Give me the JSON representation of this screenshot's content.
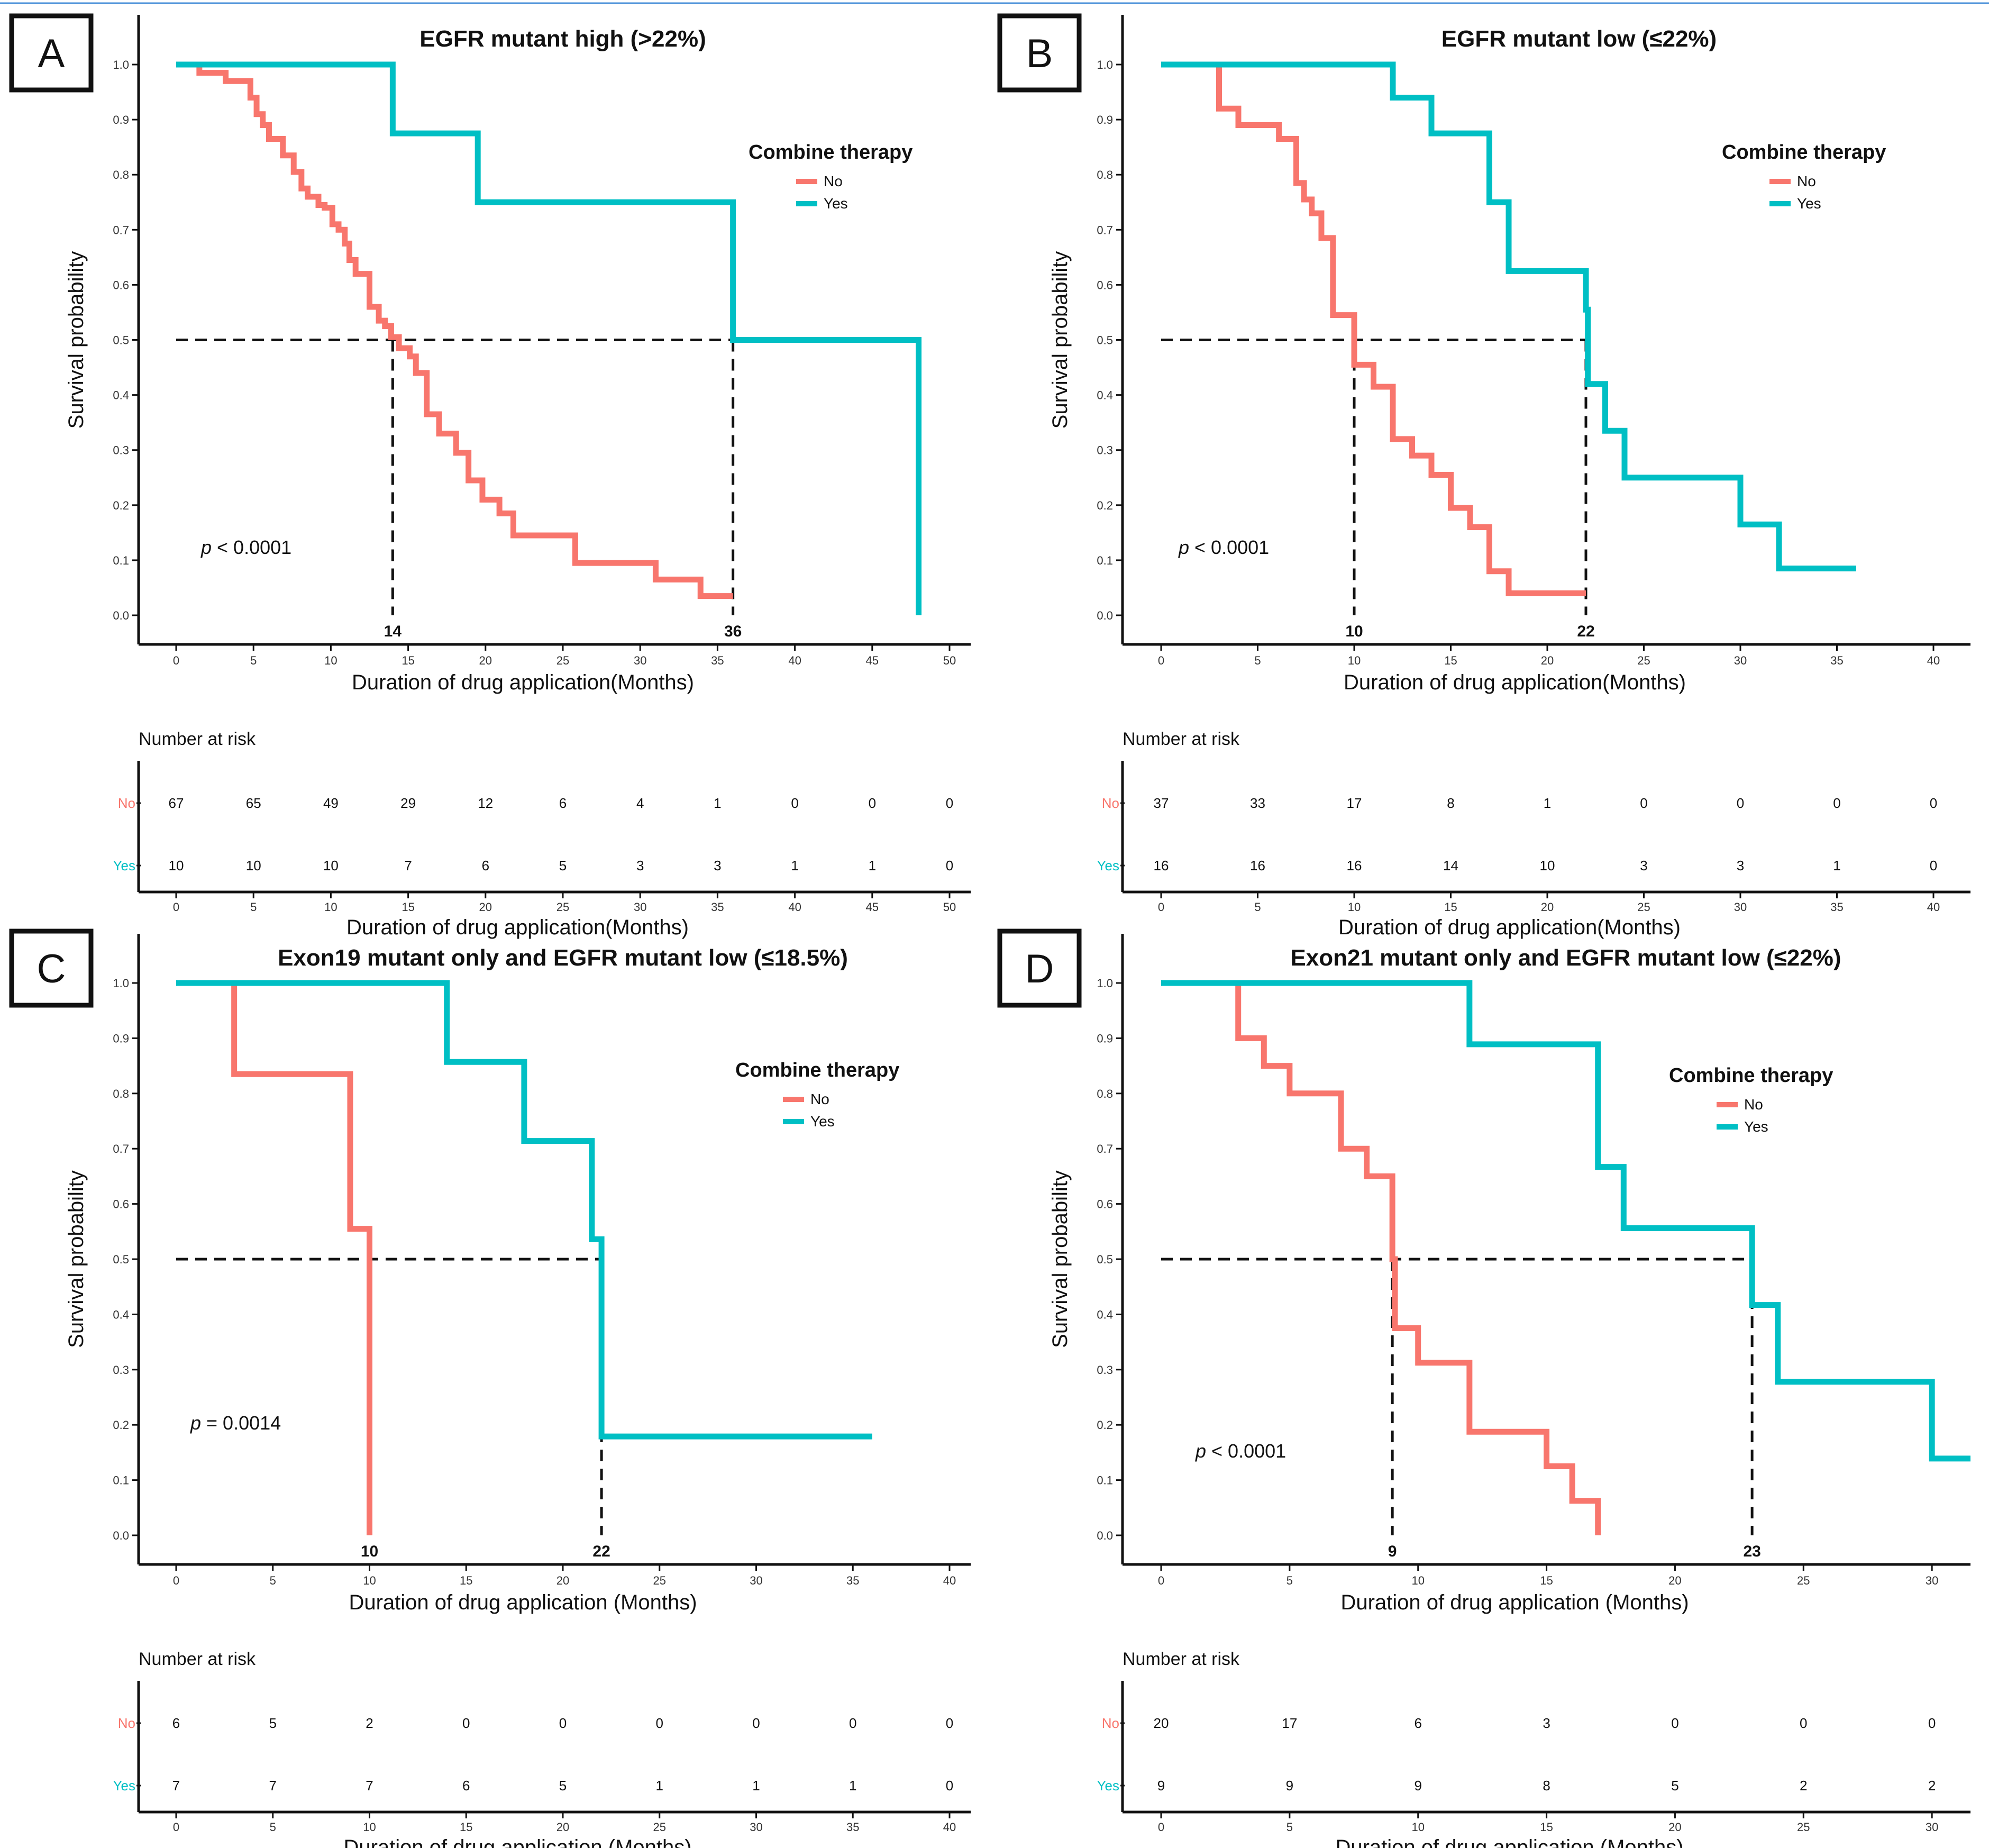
{
  "colors": {
    "no": "#f8766d",
    "yes": "#00bfc4",
    "top_rule": "#4a90d9"
  },
  "chart_data": [
    {
      "panel": "A",
      "type": "line",
      "subtype": "kaplan-meier",
      "title": "EGFR mutant high (>22%)",
      "xlabel": "Duration of drug application(Months)",
      "ylabel": "Survival probability",
      "xlim": [
        0,
        50
      ],
      "ylim": [
        0,
        1
      ],
      "xticks": [
        0,
        5,
        10,
        15,
        20,
        25,
        30,
        35,
        40,
        45,
        50
      ],
      "yticks": [
        0.0,
        0.1,
        0.2,
        0.3,
        0.4,
        0.5,
        0.6,
        0.7,
        0.8,
        0.9,
        1.0
      ],
      "legend_title": "Combine therapy",
      "legend_position": "right",
      "pvalue_label": "< 0.0001",
      "medians": [
        {
          "x": 14,
          "label": "14"
        },
        {
          "x": 36,
          "label": "36"
        }
      ],
      "series": [
        {
          "name": "No",
          "key": "no",
          "x": [
            0,
            1.5,
            3.2,
            4.8,
            5.2,
            5.6,
            6.0,
            6.9,
            7.6,
            8.1,
            8.5,
            9.2,
            9.6,
            10.1,
            10.5,
            10.9,
            11.2,
            11.6,
            12.5,
            13.1,
            13.5,
            13.9,
            14.4,
            15.1,
            15.5,
            16.2,
            17.0,
            18.1,
            18.9,
            19.8,
            20.9,
            21.8,
            25.8,
            31.0,
            33.9,
            36.0
          ],
          "y": [
            1.0,
            0.985,
            0.97,
            0.94,
            0.91,
            0.89,
            0.865,
            0.835,
            0.805,
            0.775,
            0.76,
            0.745,
            0.74,
            0.71,
            0.7,
            0.675,
            0.645,
            0.62,
            0.56,
            0.535,
            0.525,
            0.505,
            0.485,
            0.47,
            0.44,
            0.365,
            0.33,
            0.295,
            0.245,
            0.21,
            0.185,
            0.145,
            0.095,
            0.065,
            0.035,
            0.035
          ]
        },
        {
          "name": "Yes",
          "key": "yes",
          "x": [
            0,
            14,
            19.5,
            36,
            48,
            48
          ],
          "y": [
            1.0,
            0.875,
            0.75,
            0.5,
            0.5,
            0.0
          ]
        }
      ],
      "risk_table": {
        "title": "Number at risk",
        "times": [
          0,
          5,
          10,
          15,
          20,
          25,
          30,
          35,
          40,
          45,
          50
        ],
        "rows": [
          {
            "name": "No",
            "key": "no",
            "values": [
              67,
              65,
              49,
              29,
              12,
              6,
              4,
              1,
              0,
              0,
              0
            ]
          },
          {
            "name": "Yes",
            "key": "yes",
            "values": [
              10,
              10,
              10,
              7,
              6,
              5,
              3,
              3,
              1,
              1,
              0
            ]
          }
        ],
        "xlabel": "Duration of drug application(Months)"
      }
    },
    {
      "panel": "B",
      "type": "line",
      "subtype": "kaplan-meier",
      "title": "EGFR mutant low (≤22%)",
      "xlabel": "Duration of drug application(Months)",
      "ylabel": "Survival probability",
      "xlim": [
        0,
        40
      ],
      "ylim": [
        0,
        1
      ],
      "xticks": [
        0,
        5,
        10,
        15,
        20,
        25,
        30,
        35,
        40
      ],
      "yticks": [
        0.0,
        0.1,
        0.2,
        0.3,
        0.4,
        0.5,
        0.6,
        0.7,
        0.8,
        0.9,
        1.0
      ],
      "legend_title": "Combine therapy",
      "legend_position": "right",
      "pvalue_label": "< 0.0001",
      "medians": [
        {
          "x": 10,
          "label": "10"
        },
        {
          "x": 22,
          "label": "22"
        }
      ],
      "series": [
        {
          "name": "No",
          "key": "no",
          "x": [
            0,
            3.0,
            4.0,
            6.1,
            7.0,
            7.4,
            7.8,
            8.3,
            8.9,
            10.0,
            11.0,
            12.0,
            13.0,
            14.0,
            15.0,
            16.0,
            17.0,
            18.0,
            22.0
          ],
          "y": [
            1.0,
            0.92,
            0.89,
            0.865,
            0.785,
            0.755,
            0.73,
            0.685,
            0.545,
            0.455,
            0.415,
            0.32,
            0.29,
            0.255,
            0.195,
            0.16,
            0.08,
            0.04,
            0.04
          ]
        },
        {
          "name": "Yes",
          "key": "yes",
          "x": [
            0,
            12,
            14,
            17,
            18,
            22,
            22.1,
            23,
            24,
            30,
            32,
            36
          ],
          "y": [
            1.0,
            0.94,
            0.875,
            0.75,
            0.625,
            0.555,
            0.42,
            0.335,
            0.25,
            0.165,
            0.085,
            0.085
          ]
        }
      ],
      "risk_table": {
        "title": "Number at risk",
        "times": [
          0,
          5,
          10,
          15,
          20,
          25,
          30,
          35,
          40
        ],
        "rows": [
          {
            "name": "No",
            "key": "no",
            "values": [
              37,
              33,
              17,
              8,
              1,
              0,
              0,
              0,
              0
            ]
          },
          {
            "name": "Yes",
            "key": "yes",
            "values": [
              16,
              16,
              16,
              14,
              10,
              3,
              3,
              1,
              0
            ]
          }
        ],
        "xlabel": "Duration of drug application(Months)"
      }
    },
    {
      "panel": "C",
      "type": "line",
      "subtype": "kaplan-meier",
      "title": "Exon19 mutant only and EGFR mutant low (≤18.5%)",
      "xlabel": "Duration of drug application (Months)",
      "ylabel": "Survival probability",
      "xlim": [
        0,
        40
      ],
      "ylim": [
        0,
        1
      ],
      "xticks": [
        0,
        5,
        10,
        15,
        20,
        25,
        30,
        35,
        40
      ],
      "yticks": [
        0.0,
        0.1,
        0.2,
        0.3,
        0.4,
        0.5,
        0.6,
        0.7,
        0.8,
        0.9,
        1.0
      ],
      "legend_title": "Combine therapy",
      "legend_position": "right",
      "pvalue_label": "= 0.0014",
      "medians": [
        {
          "x": 10,
          "label": "10"
        },
        {
          "x": 22,
          "label": "22"
        }
      ],
      "series": [
        {
          "name": "No",
          "key": "no",
          "x": [
            0,
            3,
            9,
            10,
            10
          ],
          "y": [
            1.0,
            0.835,
            0.555,
            0.555,
            0.0
          ]
        },
        {
          "name": "Yes",
          "key": "yes",
          "x": [
            0,
            14,
            18,
            21.5,
            22,
            36
          ],
          "y": [
            1.0,
            0.857,
            0.714,
            0.536,
            0.179,
            0.179
          ]
        }
      ],
      "risk_table": {
        "title": "Number at risk",
        "times": [
          0,
          5,
          10,
          15,
          20,
          25,
          30,
          35,
          40
        ],
        "rows": [
          {
            "name": "No",
            "key": "no",
            "values": [
              6,
              5,
              2,
              0,
              0,
              0,
              0,
              0,
              0
            ]
          },
          {
            "name": "Yes",
            "key": "yes",
            "values": [
              7,
              7,
              7,
              6,
              5,
              1,
              1,
              1,
              0
            ]
          }
        ],
        "xlabel": "Duration of drug application (Months)"
      }
    },
    {
      "panel": "D",
      "type": "line",
      "subtype": "kaplan-meier",
      "title": "Exon21 mutant only and EGFR mutant low (≤22%)",
      "xlabel": "Duration of drug application (Months)",
      "ylabel": "Survival probability",
      "xlim": [
        0,
        31.5
      ],
      "ylim": [
        0,
        1
      ],
      "xticks": [
        0,
        5,
        10,
        15,
        20,
        25,
        30
      ],
      "yticks": [
        0.0,
        0.1,
        0.2,
        0.3,
        0.4,
        0.5,
        0.6,
        0.7,
        0.8,
        0.9,
        1.0
      ],
      "legend_title": "Combine therapy",
      "legend_position": "right",
      "pvalue_label": "< 0.0001",
      "medians": [
        {
          "x": 9,
          "label": "9"
        },
        {
          "x": 23,
          "label": "23"
        }
      ],
      "series": [
        {
          "name": "No",
          "key": "no",
          "x": [
            0,
            3,
            4,
            5,
            7,
            8,
            9,
            9.1,
            10,
            12,
            15,
            16,
            17,
            17
          ],
          "y": [
            1.0,
            0.9,
            0.85,
            0.8,
            0.7,
            0.65,
            0.5,
            0.375,
            0.3125,
            0.1875,
            0.125,
            0.0625,
            0.0625,
            0.0
          ]
        },
        {
          "name": "Yes",
          "key": "yes",
          "x": [
            0,
            12,
            17,
            18,
            23,
            23.1,
            24,
            30,
            31.5
          ],
          "y": [
            1.0,
            0.889,
            0.667,
            0.556,
            0.417,
            0.417,
            0.278,
            0.139,
            0.139
          ]
        }
      ],
      "risk_table": {
        "title": "Number at risk",
        "times": [
          0,
          5,
          10,
          15,
          20,
          25,
          30
        ],
        "rows": [
          {
            "name": "No",
            "key": "no",
            "values": [
              20,
              17,
              6,
              3,
              0,
              0,
              0
            ]
          },
          {
            "name": "Yes",
            "key": "yes",
            "values": [
              9,
              9,
              9,
              8,
              5,
              2,
              2
            ]
          }
        ],
        "xlabel": "Duration of drug application (Months)"
      }
    }
  ]
}
